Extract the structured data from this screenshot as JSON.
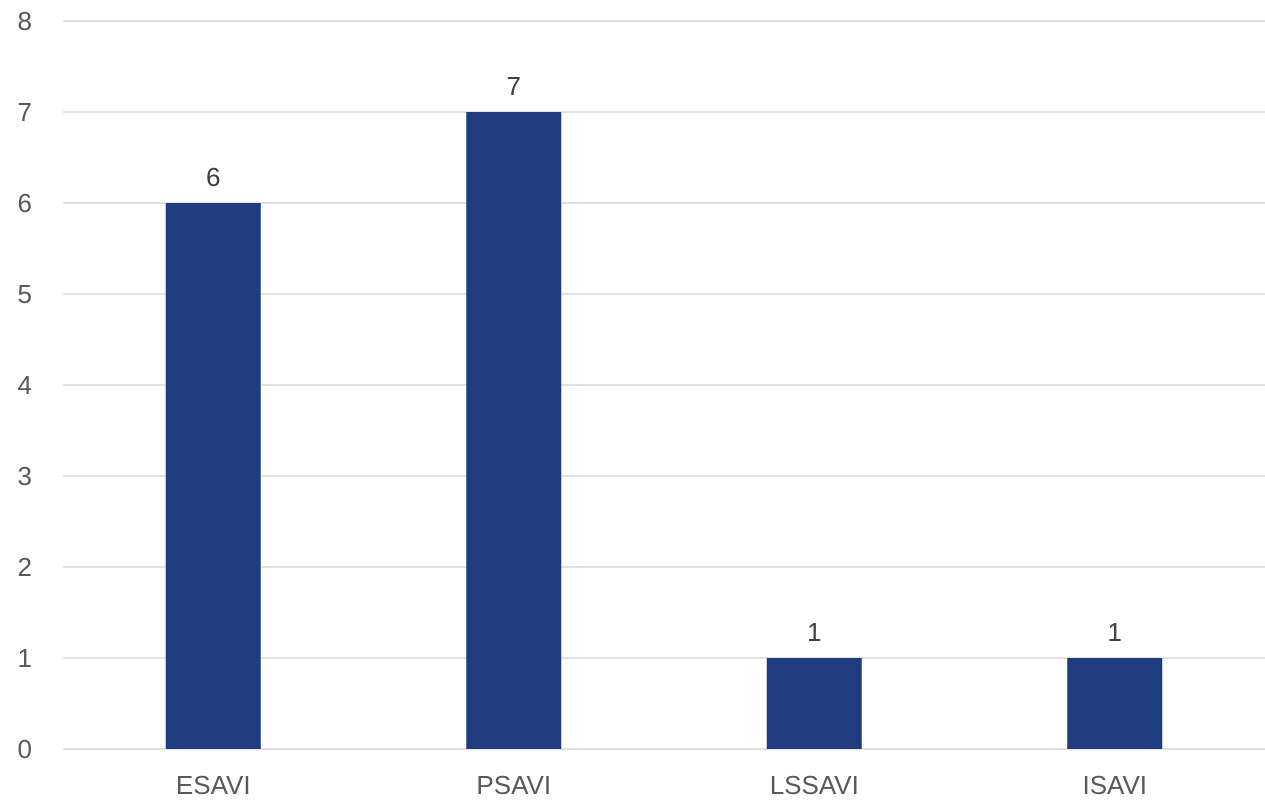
{
  "chart_data": {
    "type": "bar",
    "categories": [
      "ESAVI",
      "PSAVI",
      "LSSAVI",
      "ISAVI"
    ],
    "values": [
      6,
      7,
      1,
      1
    ],
    "title": "",
    "xlabel": "",
    "ylabel": "",
    "ylim": [
      0,
      8
    ],
    "yticks": [
      "0",
      "1",
      "2",
      "3",
      "4",
      "5",
      "6",
      "7",
      "8"
    ],
    "data_labels": [
      "6",
      "7",
      "1",
      "1"
    ],
    "grid": true,
    "legend": "none",
    "bar_color": "#1f3c7e",
    "grid_color": "#d9d9d9",
    "text_color": "#595959"
  }
}
